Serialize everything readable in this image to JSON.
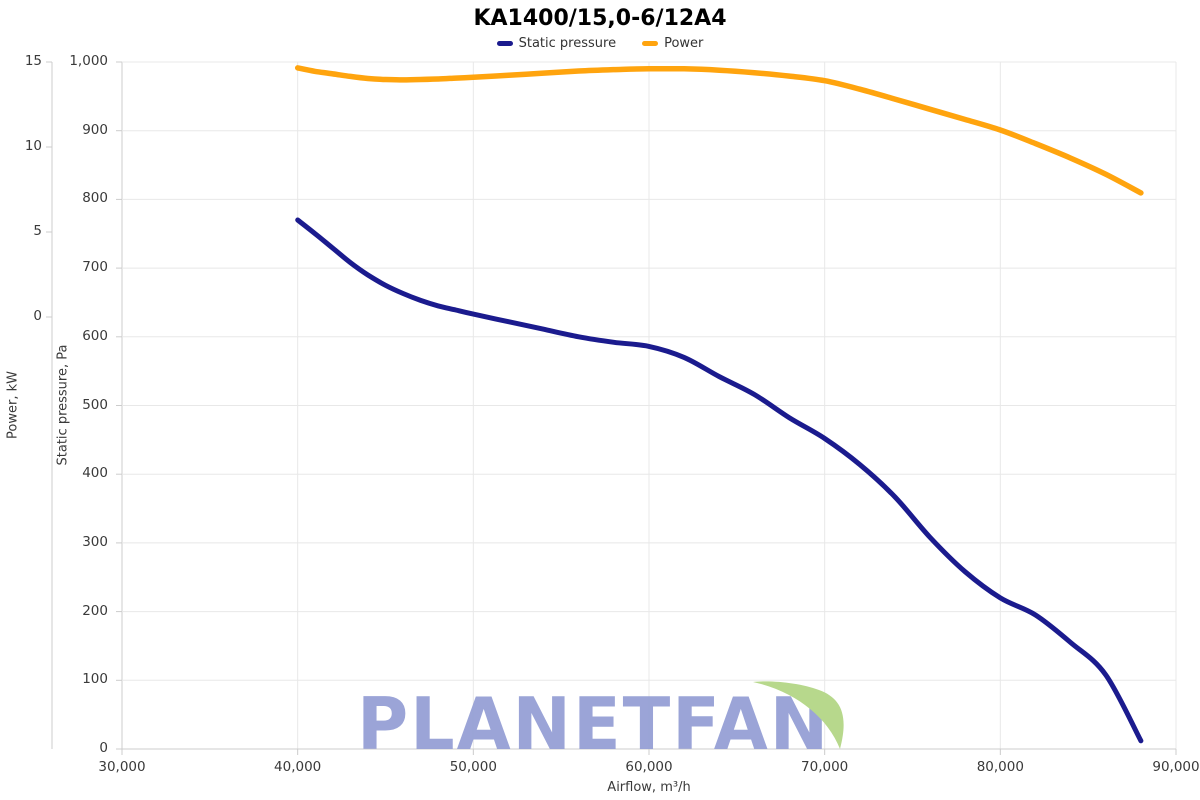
{
  "title": "KA1400/15,0-6/12A4",
  "watermark": {
    "text": "PLANETFAN",
    "text_color": "#96a0d5",
    "leaf_color": "#b7d88c"
  },
  "colors": {
    "static_pressure": "#1b1b8e",
    "power": "#ffa40e",
    "gridline": "#e8e8e8",
    "axis_line": "#cccccc",
    "tick_text": "#3a3a3a"
  },
  "axes": {
    "x": {
      "title": "Airflow, m³/h",
      "tick_values": [
        30000,
        40000,
        50000,
        60000,
        70000,
        80000,
        90000
      ],
      "tick_labels": [
        "30,000",
        "40,000",
        "50,000",
        "60,000",
        "70,000",
        "80,000",
        "90,000"
      ]
    },
    "pressure": {
      "title": "Static pressure, Pa",
      "tick_values": [
        0,
        100,
        200,
        300,
        400,
        500,
        600,
        700,
        800,
        900,
        1000
      ],
      "tick_labels": [
        "0",
        "100",
        "200",
        "300",
        "400",
        "500",
        "600",
        "700",
        "800",
        "900",
        "1,000"
      ]
    },
    "power": {
      "title": "Power, kW",
      "tick_values": [
        0,
        5,
        10,
        15
      ],
      "tick_labels": [
        "0",
        "5",
        "10",
        "15"
      ]
    }
  },
  "chart_data": {
    "type": "line",
    "title": "KA1400/15,0-6/12A4",
    "xlabel": "Airflow, m³/h",
    "xlim": [
      30000,
      90000
    ],
    "grid": true,
    "legend_position": "top-center",
    "y_axes": [
      {
        "id": "pressure",
        "label": "Static pressure, Pa",
        "ylim": [
          0,
          1000
        ]
      },
      {
        "id": "power",
        "label": "Power, kW",
        "ticks_shown": [
          0,
          5,
          10,
          15
        ]
      }
    ],
    "series": [
      {
        "name": "Static pressure",
        "axis": "pressure",
        "color": "#1b1b8e",
        "units": "Pa",
        "points": [
          [
            40000,
            770
          ],
          [
            41000,
            750
          ],
          [
            42000,
            729
          ],
          [
            43000,
            708
          ],
          [
            44000,
            690
          ],
          [
            45000,
            675
          ],
          [
            46000,
            663
          ],
          [
            47000,
            653
          ],
          [
            48000,
            645
          ],
          [
            49000,
            639
          ],
          [
            50000,
            633
          ],
          [
            52000,
            622
          ],
          [
            54000,
            611
          ],
          [
            56000,
            600
          ],
          [
            58000,
            592
          ],
          [
            60000,
            586
          ],
          [
            62000,
            570
          ],
          [
            64000,
            542
          ],
          [
            66000,
            516
          ],
          [
            68000,
            482
          ],
          [
            70000,
            452
          ],
          [
            72000,
            414
          ],
          [
            74000,
            367
          ],
          [
            76000,
            308
          ],
          [
            78000,
            258
          ],
          [
            80000,
            220
          ],
          [
            82000,
            195
          ],
          [
            84000,
            155
          ],
          [
            86000,
            108
          ],
          [
            88000,
            12
          ]
        ]
      },
      {
        "name": "Power",
        "axis": "power",
        "color": "#ffa40e",
        "units": "kW",
        "points": [
          [
            40000,
            14.65
          ],
          [
            41000,
            14.45
          ],
          [
            42000,
            14.3
          ],
          [
            43000,
            14.15
          ],
          [
            44000,
            14.03
          ],
          [
            45000,
            13.97
          ],
          [
            46000,
            13.95
          ],
          [
            47000,
            13.97
          ],
          [
            48000,
            14.0
          ],
          [
            49000,
            14.05
          ],
          [
            50000,
            14.1
          ],
          [
            52000,
            14.22
          ],
          [
            54000,
            14.35
          ],
          [
            56000,
            14.47
          ],
          [
            58000,
            14.55
          ],
          [
            60000,
            14.6
          ],
          [
            62000,
            14.6
          ],
          [
            64000,
            14.52
          ],
          [
            66000,
            14.37
          ],
          [
            68000,
            14.17
          ],
          [
            70000,
            13.9
          ],
          [
            72000,
            13.4
          ],
          [
            74000,
            12.82
          ],
          [
            76000,
            12.22
          ],
          [
            78000,
            11.62
          ],
          [
            80000,
            11.0
          ],
          [
            82000,
            10.2
          ],
          [
            84000,
            9.35
          ],
          [
            86000,
            8.4
          ],
          [
            88000,
            7.3
          ]
        ]
      }
    ]
  }
}
